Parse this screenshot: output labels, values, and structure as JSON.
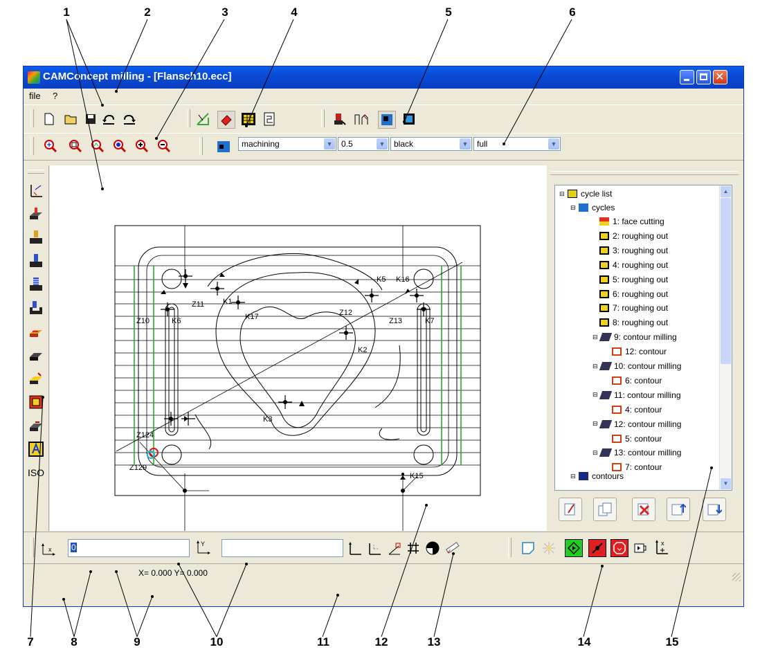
{
  "callouts_top": [
    "1",
    "2",
    "3",
    "4",
    "5",
    "6"
  ],
  "callouts_bottom": [
    "7",
    "8",
    "9",
    "10",
    "11",
    "12",
    "13",
    "14",
    "15"
  ],
  "window": {
    "title": "CAMConcept milling - [Flansch10.ecc]",
    "menu": {
      "file": "file",
      "help": "?"
    }
  },
  "view_toolbar": {
    "layer_select": "machining",
    "line_width_select": "0.5",
    "color_select": "black",
    "line_style_select": "full"
  },
  "left_toolbar": {
    "iso_label": "ISO"
  },
  "drawing": {
    "labels": [
      "K5",
      "K16",
      "K1",
      "K17",
      "Z11",
      "Z10",
      "K6",
      "Z12",
      "Z13",
      "K7",
      "K2",
      "K3",
      "K15",
      "Z129",
      "Z124"
    ]
  },
  "tree": {
    "root": "cycle list",
    "cycles_label": "cycles",
    "items": [
      {
        "label": "1: face cutting",
        "level": 2,
        "icon": "face-cutting-icon"
      },
      {
        "label": "2: roughing out",
        "level": 2,
        "icon": "roughing-icon"
      },
      {
        "label": "3: roughing out",
        "level": 2,
        "icon": "roughing-icon"
      },
      {
        "label": "4: roughing out",
        "level": 2,
        "icon": "roughing-icon"
      },
      {
        "label": "5: roughing out",
        "level": 2,
        "icon": "roughing-icon"
      },
      {
        "label": "6: roughing out",
        "level": 2,
        "icon": "roughing-icon"
      },
      {
        "label": "7: roughing out",
        "level": 2,
        "icon": "roughing-icon"
      },
      {
        "label": "8: roughing out",
        "level": 2,
        "icon": "roughing-icon"
      },
      {
        "label": "9: contour milling",
        "level": 1,
        "icon": "contour-milling-icon"
      },
      {
        "label": "12: contour",
        "level": 3,
        "icon": "contour-icon"
      },
      {
        "label": "10: contour milling",
        "level": 1,
        "icon": "contour-milling-icon"
      },
      {
        "label": "6: contour",
        "level": 3,
        "icon": "contour-icon"
      },
      {
        "label": "11: contour milling",
        "level": 1,
        "icon": "contour-milling-icon"
      },
      {
        "label": "4: contour",
        "level": 3,
        "icon": "contour-icon"
      },
      {
        "label": "12: contour milling",
        "level": 1,
        "icon": "contour-milling-icon"
      },
      {
        "label": "5: contour",
        "level": 3,
        "icon": "contour-icon"
      },
      {
        "label": "13: contour milling",
        "level": 1,
        "icon": "contour-milling-icon"
      },
      {
        "label": "7: contour",
        "level": 3,
        "icon": "contour-icon"
      }
    ],
    "contours_label": "contours"
  },
  "coord_inputs": {
    "x_value": "0"
  },
  "status": {
    "coords": "X=  0.000 Y=  0.000"
  }
}
